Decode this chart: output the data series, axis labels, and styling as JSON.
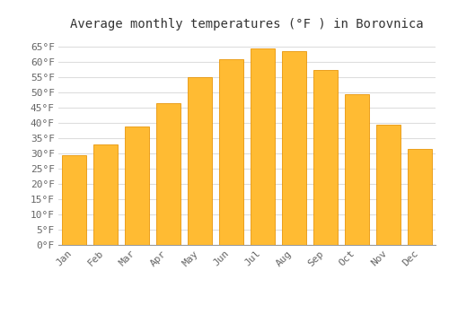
{
  "title": "Average monthly temperatures (°F ) in Borovnica",
  "months": [
    "Jan",
    "Feb",
    "Mar",
    "Apr",
    "May",
    "Jun",
    "Jul",
    "Aug",
    "Sep",
    "Oct",
    "Nov",
    "Dec"
  ],
  "values": [
    29.5,
    33.0,
    39.0,
    46.5,
    55.0,
    61.0,
    64.5,
    63.5,
    57.5,
    49.5,
    39.5,
    31.5
  ],
  "bar_color_face": "#FFBB33",
  "bar_color_edge": "#E8960A",
  "ylim": [
    0,
    68
  ],
  "yticks": [
    0,
    5,
    10,
    15,
    20,
    25,
    30,
    35,
    40,
    45,
    50,
    55,
    60,
    65
  ],
  "ytick_labels": [
    "0°F",
    "5°F",
    "10°F",
    "15°F",
    "20°F",
    "25°F",
    "30°F",
    "35°F",
    "40°F",
    "45°F",
    "50°F",
    "55°F",
    "60°F",
    "65°F"
  ],
  "background_color": "#ffffff",
  "plot_bg_color": "#ffffff",
  "grid_color": "#dddddd",
  "title_fontsize": 10,
  "tick_fontsize": 8,
  "title_color": "#333333",
  "tick_color": "#666666",
  "font_family": "monospace"
}
